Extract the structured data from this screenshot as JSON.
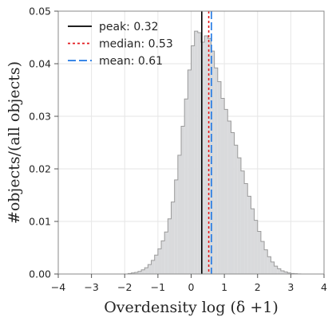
{
  "chart_data": {
    "type": "area",
    "xlabel": "Overdensity log (δ +1)",
    "ylabel": "#objects/(all objects)",
    "xlim": [
      -4,
      4
    ],
    "ylim": [
      0,
      0.05
    ],
    "x_ticks": [
      -4,
      -3,
      -2,
      -1,
      0,
      1,
      2,
      3,
      4
    ],
    "x_tick_labels": [
      "−4",
      "−3",
      "−2",
      "−1",
      "0",
      "1",
      "2",
      "3",
      "4"
    ],
    "y_ticks": [
      0.0,
      0.01,
      0.02,
      0.03,
      0.04,
      0.05
    ],
    "y_tick_labels": [
      "0.00",
      "0.01",
      "0.02",
      "0.03",
      "0.04",
      "0.05"
    ],
    "grid": true,
    "legend_position": "top-left",
    "histogram": {
      "bin_width": 0.1,
      "x": [
        -1.9,
        -1.8,
        -1.7,
        -1.6,
        -1.5,
        -1.4,
        -1.3,
        -1.2,
        -1.1,
        -1.0,
        -0.9,
        -0.8,
        -0.7,
        -0.6,
        -0.5,
        -0.4,
        -0.3,
        -0.2,
        -0.1,
        0.0,
        0.1,
        0.2,
        0.3,
        0.4,
        0.5,
        0.6,
        0.7,
        0.8,
        0.9,
        1.0,
        1.1,
        1.2,
        1.3,
        1.4,
        1.5,
        1.6,
        1.7,
        1.8,
        1.9,
        2.0,
        2.1,
        2.2,
        2.3,
        2.4,
        2.5,
        2.6,
        2.7,
        2.8,
        2.9,
        3.0,
        3.1,
        3.2
      ],
      "y": [
        0.0001,
        0.0002,
        0.0003,
        0.0005,
        0.0008,
        0.0012,
        0.0018,
        0.0026,
        0.0036,
        0.0048,
        0.0063,
        0.008,
        0.0105,
        0.0137,
        0.0179,
        0.0226,
        0.0281,
        0.0333,
        0.0388,
        0.0434,
        0.0462,
        0.0459,
        0.0441,
        0.0453,
        0.0448,
        0.0424,
        0.0392,
        0.0366,
        0.0334,
        0.0313,
        0.0291,
        0.0269,
        0.0245,
        0.0221,
        0.0196,
        0.0172,
        0.0148,
        0.0124,
        0.0102,
        0.0081,
        0.0062,
        0.0046,
        0.0033,
        0.0023,
        0.0015,
        0.001,
        0.0006,
        0.0004,
        0.0002,
        0.0001,
        5e-05,
        2e-05
      ]
    },
    "fill_color": "#d9dadc",
    "edge_color": "#9a9a9a",
    "series": [
      {
        "name": "peak: 0.32",
        "x": 0.32,
        "color": "#000000",
        "style": "solid"
      },
      {
        "name": "median: 0.53",
        "x": 0.53,
        "color": "#e31a1c",
        "style": "dotted"
      },
      {
        "name": "mean: 0.61",
        "x": 0.61,
        "color": "#1f77e4",
        "style": "dashed"
      }
    ]
  }
}
